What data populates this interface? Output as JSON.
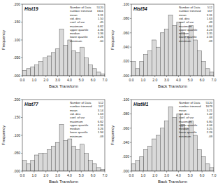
{
  "chart_data": [
    {
      "type": "histogram",
      "title": "Hist19",
      "x_label": "Back Transform",
      "y_label": "Frequency",
      "color": "#d9d9d9",
      "bins": [
        0,
        0.35,
        0.7,
        1.05,
        1.4,
        1.75,
        2.1,
        2.45,
        2.8,
        3.15,
        3.5,
        3.85,
        4.2,
        4.55,
        4.9,
        5.25,
        5.6,
        5.95,
        6.3,
        6.65,
        7
      ],
      "values": [
        0.015,
        0.02,
        0.025,
        0.03,
        0.04,
        0.05,
        0.055,
        0.065,
        0.075,
        0.13,
        0.085,
        0.1,
        0.07,
        0.065,
        0.08,
        0.05,
        0.03,
        0.02,
        0.01,
        0.005
      ],
      "xlim": [
        0,
        7
      ],
      "ylim": [
        0,
        0.2
      ],
      "xticks": [
        {
          "value": 0,
          "label": "0.0"
        },
        {
          "value": 1,
          "label": "1.0"
        },
        {
          "value": 2,
          "label": "2.0"
        },
        {
          "value": 3,
          "label": "3.0"
        },
        {
          "value": 4,
          "label": "4.0"
        },
        {
          "value": 5,
          "label": "5.0"
        },
        {
          "value": 6,
          "label": "6.0"
        },
        {
          "value": 7,
          "label": "7.0"
        }
      ],
      "yticks": [
        {
          "value": 0,
          "label": ".000"
        },
        {
          "value": 0.05,
          "label": ".050"
        },
        {
          "value": 0.1,
          "label": ".100"
        },
        {
          "value": 0.15,
          "label": ".150"
        },
        {
          "value": 0.2,
          "label": ".200"
        }
      ],
      "annotations": [
        {
          "label": "Number of Data",
          "value": "5120"
        },
        {
          "label": "number trimmed",
          "value": "1611"
        },
        {
          "label": "mean",
          "value": "3.31"
        },
        {
          "label": "std. dev.",
          "value": "1.50"
        },
        {
          "label": "coef. of var",
          "value": ".45"
        },
        {
          "label": "maximum",
          "value": "6.82"
        },
        {
          "label": "upper quartile",
          "value": "4.36"
        },
        {
          "label": "median",
          "value": "3.36"
        },
        {
          "label": "lower quartile",
          "value": "2.26"
        },
        {
          "label": "minimum",
          "value": ".00"
        }
      ]
    },
    {
      "type": "histogram",
      "title": "Hist54",
      "x_label": "Back Transform",
      "y_label": "Frequency",
      "color": "#d9d9d9",
      "bins": [
        0,
        0.35,
        0.7,
        1.05,
        1.4,
        1.75,
        2.1,
        2.45,
        2.8,
        3.15,
        3.5,
        3.85,
        4.2,
        4.55,
        4.9,
        5.25,
        5.6,
        5.95,
        6.3,
        6.65,
        7
      ],
      "values": [
        0.02,
        0.01,
        0.02,
        0.03,
        0.035,
        0.05,
        0.04,
        0.06,
        0.065,
        0.085,
        0.07,
        0.075,
        0.06,
        0.055,
        0.07,
        0.05,
        0.035,
        0.02,
        0.01,
        0.005
      ],
      "xlim": [
        0,
        7
      ],
      "ylim": [
        0,
        0.1
      ],
      "xticks": [
        {
          "value": 0,
          "label": "0.0"
        },
        {
          "value": 1,
          "label": "1.0"
        },
        {
          "value": 2,
          "label": "2.0"
        },
        {
          "value": 3,
          "label": "3.0"
        },
        {
          "value": 4,
          "label": "4.0"
        },
        {
          "value": 5,
          "label": "5.0"
        },
        {
          "value": 6,
          "label": "6.0"
        },
        {
          "value": 7,
          "label": "7.0"
        }
      ],
      "yticks": [
        {
          "value": 0,
          "label": ".000"
        },
        {
          "value": 0.02,
          "label": ".020"
        },
        {
          "value": 0.04,
          "label": ".040"
        },
        {
          "value": 0.06,
          "label": ".060"
        },
        {
          "value": 0.08,
          "label": ".080"
        },
        {
          "value": 0.1,
          "label": ".100"
        }
      ],
      "annotations": [
        {
          "label": "Number of Data",
          "value": "512"
        },
        {
          "label": "number trimmed",
          "value": "167"
        },
        {
          "label": "mean",
          "value": "3.31"
        },
        {
          "label": "std. dev.",
          "value": "1.63"
        },
        {
          "label": "coef. of var",
          "value": ".49"
        },
        {
          "label": "maximum",
          "value": "6.84"
        },
        {
          "label": "upper quartile",
          "value": "4.23"
        },
        {
          "label": "median",
          "value": "3.35"
        },
        {
          "label": "lower quartile",
          "value": "2.33"
        },
        {
          "label": "minimum",
          "value": ".09"
        }
      ]
    },
    {
      "type": "histogram",
      "title": "Hist77",
      "x_label": "Back Transform",
      "y_label": "Frequency",
      "color": "#d9d9d9",
      "bins": [
        0,
        0.35,
        0.7,
        1.05,
        1.4,
        1.75,
        2.1,
        2.45,
        2.8,
        3.15,
        3.5,
        3.85,
        4.2,
        4.55,
        4.9,
        5.25,
        5.6,
        5.95,
        6.3,
        6.65,
        7
      ],
      "values": [
        0.03,
        0.02,
        0.03,
        0.045,
        0.05,
        0.05,
        0.06,
        0.07,
        0.08,
        0.13,
        0.085,
        0.09,
        0.07,
        0.06,
        0.075,
        0.05,
        0.03,
        0.02,
        0.01,
        0.005
      ],
      "xlim": [
        0,
        7
      ],
      "ylim": [
        0,
        0.2
      ],
      "xticks": [
        {
          "value": 0,
          "label": "0.0"
        },
        {
          "value": 1,
          "label": "1.0"
        },
        {
          "value": 2,
          "label": "2.0"
        },
        {
          "value": 3,
          "label": "3.0"
        },
        {
          "value": 4,
          "label": "4.0"
        },
        {
          "value": 5,
          "label": "5.0"
        },
        {
          "value": 6,
          "label": "6.0"
        },
        {
          "value": 7,
          "label": "7.0"
        }
      ],
      "yticks": [
        {
          "value": 0,
          "label": ".000"
        },
        {
          "value": 0.05,
          "label": ".050"
        },
        {
          "value": 0.1,
          "label": ".100"
        },
        {
          "value": 0.15,
          "label": ".150"
        },
        {
          "value": 0.2,
          "label": ".200"
        }
      ],
      "annotations": [
        {
          "label": "Number of Data",
          "value": "512"
        },
        {
          "label": "number trimmed",
          "value": "167"
        },
        {
          "label": "mean",
          "value": "3.14"
        },
        {
          "label": "std. dev.",
          "value": "1.63"
        },
        {
          "label": "coef. of var",
          "value": ".52"
        },
        {
          "label": "maximum",
          "value": "6.82"
        },
        {
          "label": "upper quartile",
          "value": "4.36"
        },
        {
          "label": "median",
          "value": "3.26"
        },
        {
          "label": "lower quartile",
          "value": "1.94"
        },
        {
          "label": "minimum",
          "value": ".09"
        }
      ]
    },
    {
      "type": "histogram",
      "title": "HistM1",
      "x_label": "Back Transform",
      "y_label": "Frequency",
      "color": "#d9d9d9",
      "bins": [
        0,
        0.35,
        0.7,
        1.05,
        1.4,
        1.75,
        2.1,
        2.45,
        2.8,
        3.15,
        3.5,
        3.85,
        4.2,
        4.55,
        4.9,
        5.25,
        5.6,
        5.95,
        6.3,
        6.65,
        7
      ],
      "values": [
        0.01,
        0.015,
        0.02,
        0.03,
        0.035,
        0.045,
        0.05,
        0.06,
        0.07,
        0.09,
        0.075,
        0.08,
        0.065,
        0.06,
        0.07,
        0.05,
        0.03,
        0.02,
        0.01,
        0.005
      ],
      "xlim": [
        0,
        7
      ],
      "ylim": [
        0,
        0.1
      ],
      "xticks": [
        {
          "value": 0,
          "label": "0.0"
        },
        {
          "value": 1,
          "label": "1.0"
        },
        {
          "value": 2,
          "label": "2.0"
        },
        {
          "value": 3,
          "label": "3.0"
        },
        {
          "value": 4,
          "label": "4.0"
        },
        {
          "value": 5,
          "label": "5.0"
        },
        {
          "value": 6,
          "label": "6.0"
        },
        {
          "value": 7,
          "label": "7.0"
        }
      ],
      "yticks": [
        {
          "value": 0,
          "label": ".000"
        },
        {
          "value": 0.02,
          "label": ".020"
        },
        {
          "value": 0.04,
          "label": ".040"
        },
        {
          "value": 0.06,
          "label": ".060"
        },
        {
          "value": 0.08,
          "label": ".080"
        },
        {
          "value": 0.1,
          "label": ".100"
        }
      ],
      "annotations": [
        {
          "label": "Number of Data",
          "value": "5120"
        },
        {
          "label": "number trimmed",
          "value": "1679"
        },
        {
          "label": "mean",
          "value": "3.21"
        },
        {
          "label": "std. dev.",
          "value": "1.42"
        },
        {
          "label": "coef. of var",
          "value": ".44"
        },
        {
          "label": "maximum",
          "value": "6.80"
        },
        {
          "label": "upper quartile",
          "value": "4.06"
        },
        {
          "label": "median",
          "value": "3.25"
        },
        {
          "label": "lower quartile",
          "value": "2.26"
        },
        {
          "label": "minimum",
          "value": ".09"
        }
      ]
    }
  ]
}
